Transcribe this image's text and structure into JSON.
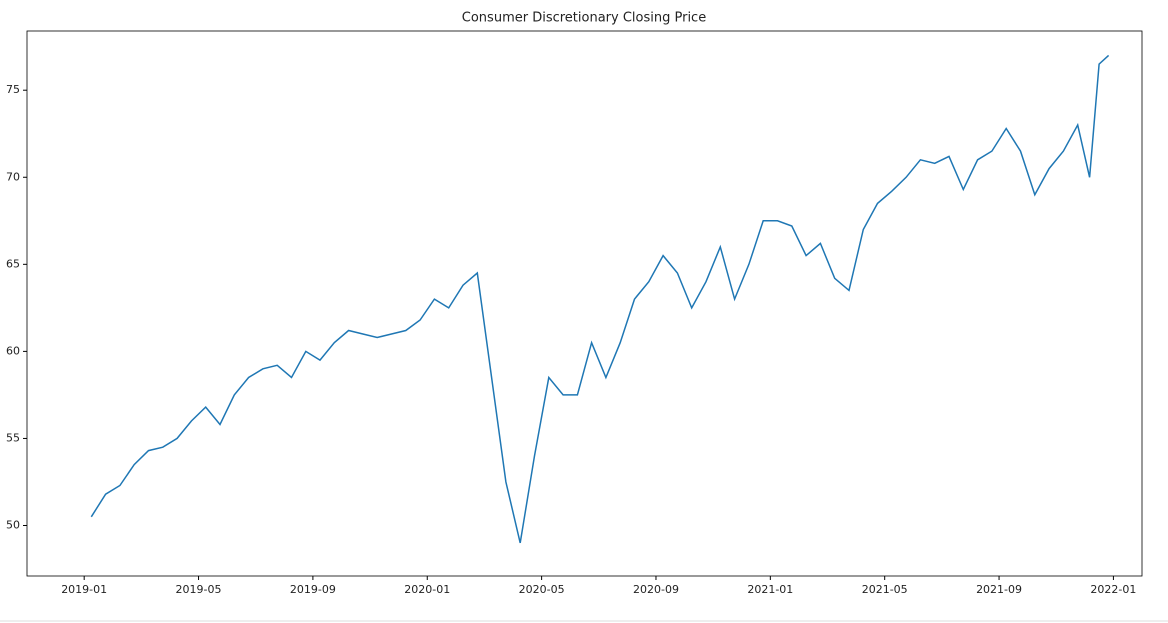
{
  "chart_data": {
    "type": "line",
    "title": "Consumer Discretionary Closing Price",
    "x": [
      "2019-01",
      "2019-01",
      "2019-02",
      "2019-02",
      "2019-03",
      "2019-03",
      "2019-04",
      "2019-04",
      "2019-05",
      "2019-05",
      "2019-06",
      "2019-06",
      "2019-07",
      "2019-07",
      "2019-08",
      "2019-08",
      "2019-09",
      "2019-09",
      "2019-10",
      "2019-10",
      "2019-11",
      "2019-11",
      "2019-12",
      "2019-12",
      "2020-01",
      "2020-01",
      "2020-02",
      "2020-02",
      "2020-03",
      "2020-03",
      "2020-04",
      "2020-04",
      "2020-05",
      "2020-05",
      "2020-06",
      "2020-06",
      "2020-07",
      "2020-07",
      "2020-08",
      "2020-08",
      "2020-09",
      "2020-09",
      "2020-10",
      "2020-10",
      "2020-11",
      "2020-11",
      "2020-12",
      "2020-12",
      "2021-01",
      "2021-01",
      "2021-02",
      "2021-02",
      "2021-03",
      "2021-03",
      "2021-04",
      "2021-04",
      "2021-05",
      "2021-05",
      "2021-06",
      "2021-06",
      "2021-07",
      "2021-07",
      "2021-08",
      "2021-08",
      "2021-09",
      "2021-09",
      "2021-10",
      "2021-10",
      "2021-11",
      "2021-11",
      "2021-12",
      "2021-12",
      "2021-12"
    ],
    "series": [
      {
        "color": "#1f77b4",
        "values": [
          50.5,
          51.8,
          52.3,
          53.5,
          54.3,
          54.5,
          55.0,
          56.0,
          56.8,
          55.8,
          57.5,
          58.5,
          59.0,
          59.2,
          58.5,
          60.0,
          59.5,
          60.5,
          61.2,
          61.0,
          60.8,
          61.0,
          61.2,
          61.8,
          63.0,
          62.5,
          63.8,
          64.5,
          58.5,
          52.5,
          49.0,
          54.0,
          58.5,
          57.5,
          57.5,
          60.5,
          58.5,
          60.5,
          63.0,
          64.0,
          65.5,
          64.5,
          62.5,
          64.0,
          66.0,
          63.0,
          65.0,
          67.5,
          67.5,
          67.2,
          65.5,
          66.2,
          64.2,
          63.5,
          67.0,
          68.5,
          69.2,
          70.0,
          71.0,
          70.8,
          71.2,
          69.3,
          71.0,
          71.5,
          72.8,
          71.5,
          69.0,
          70.5,
          71.5,
          73.0,
          70.0,
          76.5,
          77.0
        ]
      }
    ],
    "xlim": [
      "2018-11",
      "2022-02"
    ],
    "xticks": [
      "2019-01",
      "2019-05",
      "2019-09",
      "2020-01",
      "2020-05",
      "2020-09",
      "2021-01",
      "2021-05",
      "2021-09",
      "2022-01"
    ],
    "ylim": [
      47.1,
      78.4
    ],
    "yticks": [
      50,
      55,
      60,
      65,
      70,
      75
    ]
  }
}
